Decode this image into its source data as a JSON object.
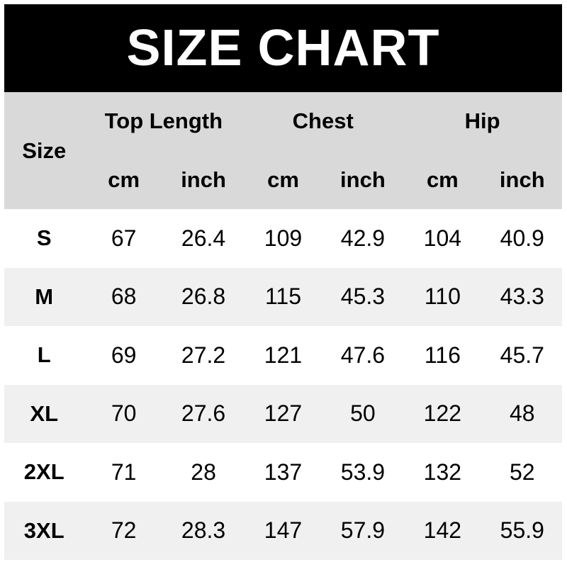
{
  "title": "SIZE CHART",
  "colors": {
    "banner_bg": "#000000",
    "banner_text": "#ffffff",
    "header_bg": "#d9d9d9",
    "row_bg": "#ffffff",
    "row_alt_bg": "#f0f0f0",
    "text": "#000000"
  },
  "table": {
    "corner_label": "Size",
    "groups": [
      {
        "label": "Top Length"
      },
      {
        "label": "Chest"
      },
      {
        "label": "Hip"
      }
    ],
    "units": [
      "cm",
      "inch",
      "cm",
      "inch",
      "cm",
      "inch"
    ],
    "rows": [
      {
        "size": "S",
        "values": [
          "67",
          "26.4",
          "109",
          "42.9",
          "104",
          "40.9"
        ]
      },
      {
        "size": "M",
        "values": [
          "68",
          "26.8",
          "115",
          "45.3",
          "110",
          "43.3"
        ]
      },
      {
        "size": "L",
        "values": [
          "69",
          "27.2",
          "121",
          "47.6",
          "116",
          "45.7"
        ]
      },
      {
        "size": "XL",
        "values": [
          "70",
          "27.6",
          "127",
          "50",
          "122",
          "48"
        ]
      },
      {
        "size": "2XL",
        "values": [
          "71",
          "28",
          "137",
          "53.9",
          "132",
          "52"
        ]
      },
      {
        "size": "3XL",
        "values": [
          "72",
          "28.3",
          "147",
          "57.9",
          "142",
          "55.9"
        ]
      }
    ]
  },
  "chart_data": {
    "type": "table",
    "title": "SIZE CHART",
    "columns": [
      "Size",
      "Top Length (cm)",
      "Top Length (inch)",
      "Chest (cm)",
      "Chest (inch)",
      "Hip (cm)",
      "Hip (inch)"
    ],
    "rows": [
      [
        "S",
        67,
        26.4,
        109,
        42.9,
        104,
        40.9
      ],
      [
        "M",
        68,
        26.8,
        115,
        45.3,
        110,
        43.3
      ],
      [
        "L",
        69,
        27.2,
        121,
        47.6,
        116,
        45.7
      ],
      [
        "XL",
        70,
        27.6,
        127,
        50,
        122,
        48
      ],
      [
        "2XL",
        71,
        28,
        137,
        53.9,
        132,
        52
      ],
      [
        "3XL",
        72,
        28.3,
        147,
        57.9,
        142,
        55.9
      ]
    ],
    "layout": {
      "header_grouped": true,
      "alternating_rows": true,
      "legend": "none",
      "grid": "off"
    }
  }
}
